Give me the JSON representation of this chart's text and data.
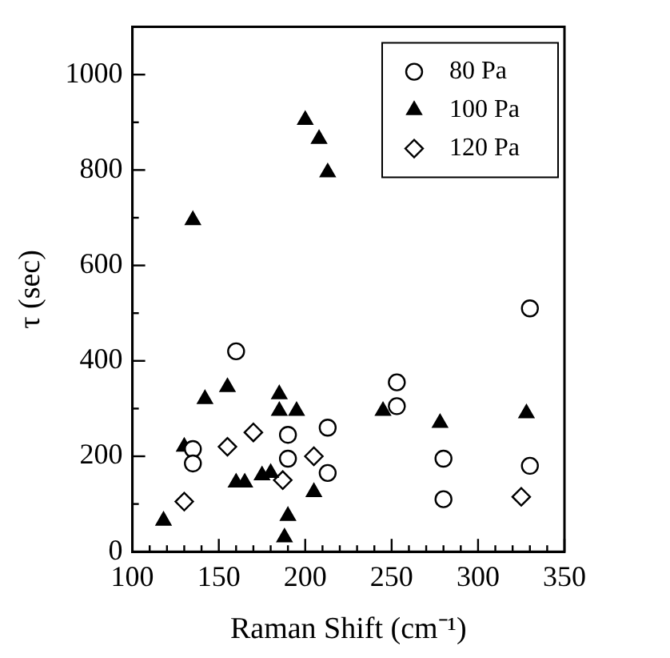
{
  "chart_data": {
    "type": "scatter",
    "xlabel": "Raman Shift (cm⁻¹)",
    "ylabel": "τ (sec)",
    "xlim": [
      100,
      350
    ],
    "xticks": [
      100,
      {
        "value": 110,
        "label": null
      },
      {
        "value": 120,
        "label": null
      },
      {
        "value": 130,
        "label": null
      },
      {
        "value": 140,
        "label": null
      },
      150,
      {
        "value": 160,
        "label": null
      },
      {
        "value": 170,
        "label": null
      },
      {
        "value": 180,
        "label": null
      },
      {
        "value": 190,
        "label": null
      },
      200,
      {
        "value": 210,
        "label": null
      },
      {
        "value": 220,
        "label": null
      },
      {
        "value": 230,
        "label": null
      },
      {
        "value": 240,
        "label": null
      },
      250,
      {
        "value": 260,
        "label": null
      },
      {
        "value": 270,
        "label": null
      },
      {
        "value": 280,
        "label": null
      },
      {
        "value": 290,
        "label": null
      },
      300,
      {
        "value": 310,
        "label": null
      },
      {
        "value": 320,
        "label": null
      },
      {
        "value": 330,
        "label": null
      },
      {
        "value": 340,
        "label": null
      },
      350
    ],
    "ylim": [
      0,
      1100
    ],
    "yticks": [
      0,
      {
        "value": 100,
        "label": null
      },
      200,
      {
        "value": 300,
        "label": null
      },
      400,
      {
        "value": 500,
        "label": null
      },
      600,
      {
        "value": 700,
        "label": null
      },
      800,
      {
        "value": 900,
        "label": null
      },
      1000
    ],
    "grid": false,
    "legend": "top right",
    "series": [
      {
        "name": "80 Pa",
        "color": "#000000",
        "marker": "circle",
        "x": [
          135,
          135,
          160,
          190,
          190,
          213,
          213,
          253,
          253,
          280,
          280,
          330,
          330
        ],
        "values": [
          215,
          185,
          420,
          245,
          195,
          260,
          165,
          355,
          305,
          195,
          110,
          510,
          180
        ]
      },
      {
        "name": "100 Pa",
        "color": "#000000",
        "marker": "triangle",
        "x": [
          118,
          130,
          135,
          142,
          155,
          160,
          165,
          175,
          180,
          185,
          185,
          195,
          188,
          190,
          205,
          200,
          208,
          213,
          245,
          278,
          328
        ],
        "values": [
          65,
          220,
          695,
          320,
          345,
          145,
          145,
          160,
          165,
          330,
          295,
          295,
          30,
          75,
          125,
          905,
          865,
          795,
          295,
          270,
          290
        ]
      },
      {
        "name": "120 Pa",
        "color": "#000000",
        "marker": "diamond",
        "x": [
          130,
          155,
          170,
          187,
          205,
          325
        ],
        "values": [
          105,
          220,
          250,
          150,
          200,
          115
        ]
      }
    ]
  }
}
